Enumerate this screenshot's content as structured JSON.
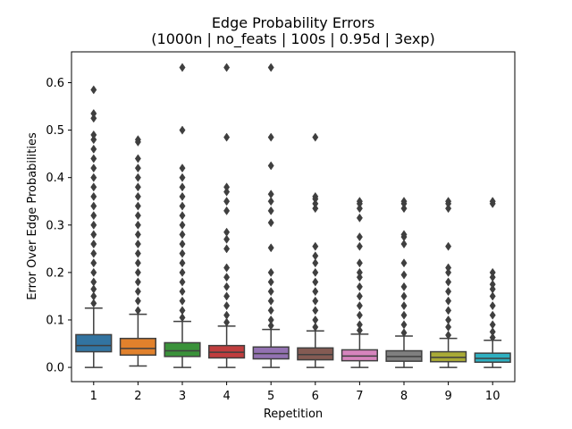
{
  "chart_data": {
    "type": "box",
    "title": "Edge Probability Errors",
    "subtitle": "(1000n | no_feats | 100s | 0.95d | 3exp)",
    "xlabel": "Repetition",
    "ylabel": "Error Over Edge Probabilities",
    "categories": [
      "1",
      "2",
      "3",
      "4",
      "5",
      "6",
      "7",
      "8",
      "9",
      "10"
    ],
    "ylim": [
      -0.03,
      0.665
    ],
    "yticks": [
      0.0,
      0.1,
      0.2,
      0.3,
      0.4,
      0.5,
      0.6
    ],
    "ytick_labels": [
      "0.0",
      "0.1",
      "0.2",
      "0.3",
      "0.4",
      "0.5",
      "0.6"
    ],
    "grid": false,
    "legend": "none",
    "boxes": [
      {
        "category": "1",
        "color": "#3274a1",
        "whisker_low": 0.0,
        "q1": 0.033,
        "median": 0.046,
        "q3": 0.069,
        "whisker_high": 0.125,
        "outliers": [
          0.135,
          0.15,
          0.165,
          0.18,
          0.2,
          0.22,
          0.24,
          0.26,
          0.28,
          0.3,
          0.32,
          0.34,
          0.36,
          0.38,
          0.4,
          0.42,
          0.44,
          0.46,
          0.48,
          0.49,
          0.525,
          0.535,
          0.585
        ]
      },
      {
        "category": "2",
        "color": "#e1812c",
        "whisker_low": 0.003,
        "q1": 0.026,
        "median": 0.04,
        "q3": 0.061,
        "whisker_high": 0.112,
        "outliers": [
          0.12,
          0.14,
          0.16,
          0.18,
          0.2,
          0.22,
          0.24,
          0.26,
          0.28,
          0.3,
          0.32,
          0.34,
          0.36,
          0.38,
          0.4,
          0.42,
          0.44,
          0.475,
          0.48
        ]
      },
      {
        "category": "3",
        "color": "#3a923a",
        "whisker_low": 0.0,
        "q1": 0.023,
        "median": 0.035,
        "q3": 0.052,
        "whisker_high": 0.097,
        "outliers": [
          0.105,
          0.12,
          0.14,
          0.16,
          0.18,
          0.2,
          0.22,
          0.24,
          0.26,
          0.28,
          0.3,
          0.32,
          0.34,
          0.36,
          0.38,
          0.4,
          0.42,
          0.5,
          0.632
        ]
      },
      {
        "category": "4",
        "color": "#c03d3e",
        "whisker_low": 0.0,
        "q1": 0.02,
        "median": 0.032,
        "q3": 0.046,
        "whisker_high": 0.087,
        "outliers": [
          0.095,
          0.11,
          0.13,
          0.15,
          0.17,
          0.19,
          0.21,
          0.25,
          0.27,
          0.285,
          0.33,
          0.35,
          0.37,
          0.38,
          0.485,
          0.632
        ]
      },
      {
        "category": "5",
        "color": "#9372b2",
        "whisker_low": 0.0,
        "q1": 0.018,
        "median": 0.029,
        "q3": 0.043,
        "whisker_high": 0.08,
        "outliers": [
          0.088,
          0.1,
          0.12,
          0.14,
          0.16,
          0.18,
          0.2,
          0.252,
          0.305,
          0.33,
          0.35,
          0.365,
          0.425,
          0.485,
          0.632
        ]
      },
      {
        "category": "6",
        "color": "#845b53",
        "whisker_low": 0.0,
        "q1": 0.016,
        "median": 0.027,
        "q3": 0.041,
        "whisker_high": 0.077,
        "outliers": [
          0.085,
          0.1,
          0.12,
          0.14,
          0.16,
          0.18,
          0.2,
          0.22,
          0.235,
          0.255,
          0.335,
          0.345,
          0.355,
          0.36,
          0.485
        ]
      },
      {
        "category": "7",
        "color": "#d684bd",
        "whisker_low": 0.0,
        "q1": 0.014,
        "median": 0.024,
        "q3": 0.037,
        "whisker_high": 0.07,
        "outliers": [
          0.078,
          0.09,
          0.11,
          0.13,
          0.15,
          0.17,
          0.19,
          0.2,
          0.22,
          0.255,
          0.275,
          0.315,
          0.335,
          0.345,
          0.35
        ]
      },
      {
        "category": "8",
        "color": "#7f7f7f",
        "whisker_low": 0.0,
        "q1": 0.013,
        "median": 0.023,
        "q3": 0.035,
        "whisker_high": 0.066,
        "outliers": [
          0.073,
          0.09,
          0.11,
          0.13,
          0.15,
          0.17,
          0.195,
          0.22,
          0.26,
          0.275,
          0.28,
          0.335,
          0.345,
          0.35
        ]
      },
      {
        "category": "9",
        "color": "#a9aa35",
        "whisker_low": 0.0,
        "q1": 0.012,
        "median": 0.021,
        "q3": 0.033,
        "whisker_high": 0.061,
        "outliers": [
          0.068,
          0.085,
          0.1,
          0.12,
          0.14,
          0.16,
          0.18,
          0.2,
          0.21,
          0.255,
          0.335,
          0.345,
          0.35
        ]
      },
      {
        "category": "10",
        "color": "#2eb0c1",
        "whisker_low": 0.0,
        "q1": 0.011,
        "median": 0.019,
        "q3": 0.03,
        "whisker_high": 0.057,
        "outliers": [
          0.063,
          0.075,
          0.09,
          0.11,
          0.13,
          0.15,
          0.165,
          0.175,
          0.19,
          0.2,
          0.345,
          0.35
        ]
      }
    ]
  }
}
